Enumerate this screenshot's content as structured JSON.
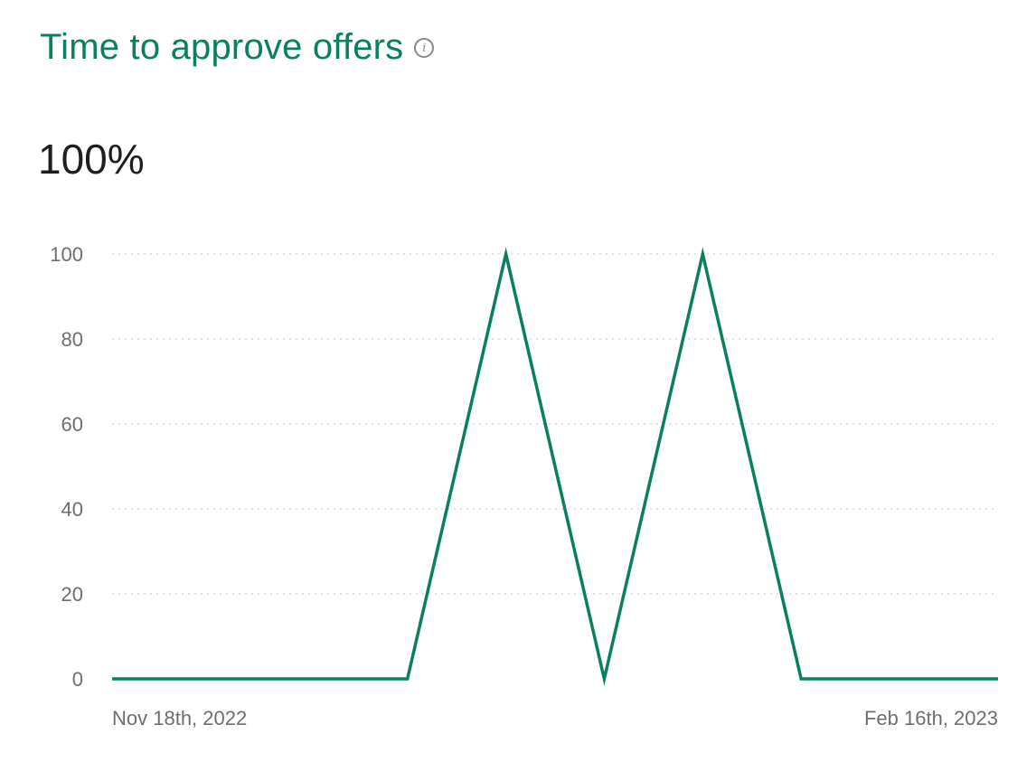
{
  "header": {
    "title": "Time to approve offers",
    "info_icon": "info-icon",
    "info_glyph": "i"
  },
  "metric": {
    "value": "100%"
  },
  "chart_data": {
    "type": "line",
    "title": "",
    "xlabel": "",
    "ylabel": "",
    "x_start_label": "Nov 18th, 2022",
    "x_end_label": "Feb 16th, 2023",
    "x": [
      "2022-11-18",
      "2022-12-18",
      "2022-12-28",
      "2023-01-07",
      "2023-01-17",
      "2023-01-27",
      "2023-02-06",
      "2023-02-16"
    ],
    "series": [
      {
        "values": [
          0,
          0,
          100,
          0,
          100,
          0,
          0,
          0
        ],
        "color": "#0a8060"
      }
    ],
    "ylim": [
      0,
      100
    ],
    "yticks": [
      0,
      20,
      40,
      60,
      80,
      100
    ],
    "grid": true,
    "grid_style": "dotted",
    "legend": "none"
  }
}
